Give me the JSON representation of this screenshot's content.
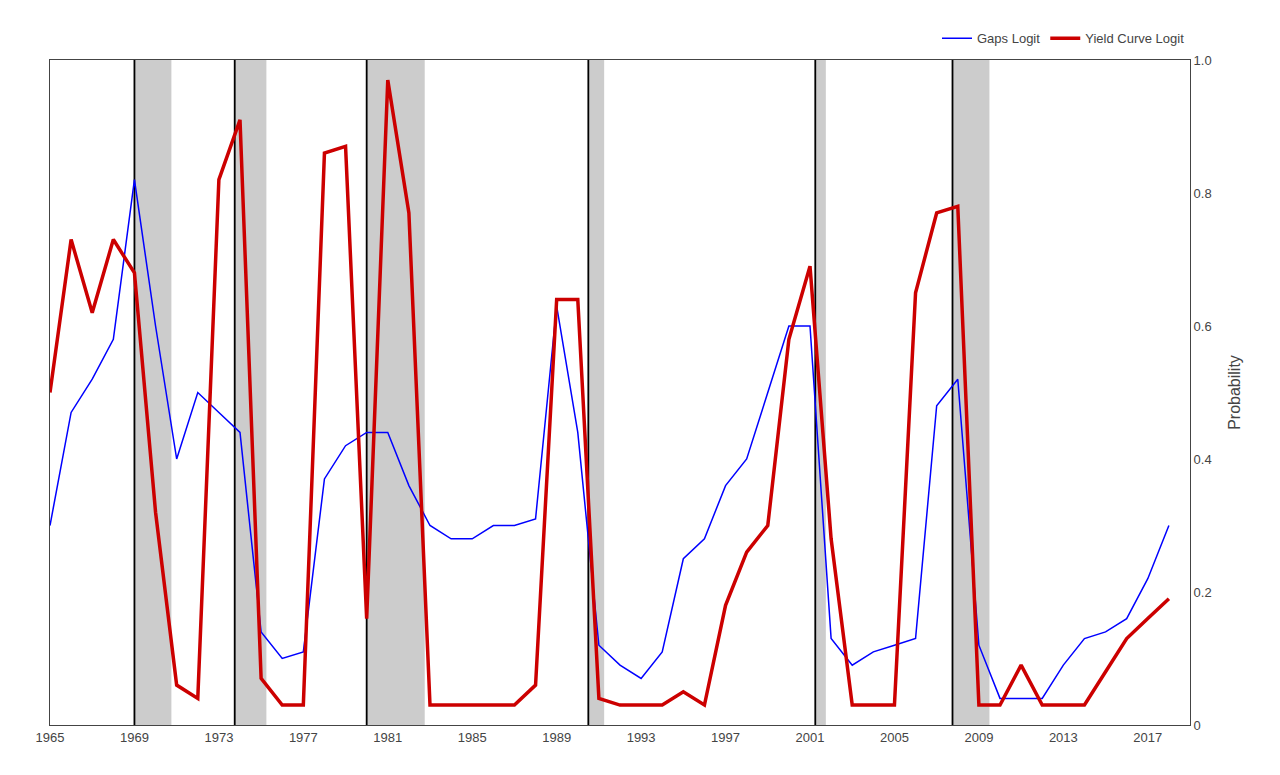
{
  "chart_data": {
    "type": "line",
    "ylabel": "Probability",
    "x": [
      1965,
      1966,
      1967,
      1968,
      1969,
      1970,
      1971,
      1972,
      1973,
      1974,
      1975,
      1976,
      1977,
      1978,
      1979,
      1980,
      1981,
      1982,
      1983,
      1984,
      1985,
      1986,
      1987,
      1988,
      1989,
      1990,
      1991,
      1992,
      1993,
      1994,
      1995,
      1996,
      1997,
      1998,
      1999,
      2000,
      2001,
      2002,
      2003,
      2004,
      2005,
      2006,
      2007,
      2008,
      2009,
      2010,
      2011,
      2012,
      2013,
      2014,
      2015,
      2016,
      2017,
      2018
    ],
    "series": [
      {
        "name": "Gaps Logit",
        "color": "#0000FF",
        "values": [
          0.3,
          0.47,
          0.52,
          0.58,
          0.82,
          0.6,
          0.4,
          0.5,
          0.47,
          0.44,
          0.14,
          0.1,
          0.11,
          0.37,
          0.42,
          0.44,
          0.44,
          0.36,
          0.3,
          0.28,
          0.28,
          0.3,
          0.3,
          0.31,
          0.63,
          0.44,
          0.12,
          0.09,
          0.07,
          0.11,
          0.25,
          0.28,
          0.36,
          0.4,
          0.5,
          0.6,
          0.6,
          0.13,
          0.09,
          0.11,
          0.12,
          0.13,
          0.48,
          0.52,
          0.12,
          0.04,
          0.04,
          0.04,
          0.09,
          0.13,
          0.14,
          0.16,
          0.22,
          0.3
        ]
      },
      {
        "name": "Yield Curve Logit",
        "color": "#CC0000",
        "values": [
          0.5,
          0.73,
          0.62,
          0.73,
          0.68,
          0.32,
          0.06,
          0.04,
          0.82,
          0.91,
          0.07,
          0.03,
          0.03,
          0.86,
          0.87,
          0.16,
          0.97,
          0.77,
          0.03,
          0.03,
          0.03,
          0.03,
          0.03,
          0.06,
          0.64,
          0.64,
          0.04,
          0.03,
          0.03,
          0.03,
          0.05,
          0.03,
          0.18,
          0.26,
          0.3,
          0.58,
          0.69,
          0.28,
          0.03,
          0.03,
          0.03,
          0.65,
          0.77,
          0.78,
          0.03,
          0.03,
          0.09,
          0.03,
          0.03,
          0.03,
          0.08,
          0.13,
          0.16,
          0.19
        ]
      }
    ],
    "recession_shades": [
      [
        1969.0,
        1970.75
      ],
      [
        1973.75,
        1975.25
      ],
      [
        1980.0,
        1982.75
      ],
      [
        1990.5,
        1991.25
      ],
      [
        2001.25,
        2001.75
      ],
      [
        2007.75,
        2009.5
      ]
    ],
    "recession_lines": [
      1969.0,
      1973.75,
      1980.0,
      1990.5,
      2001.25,
      2007.75
    ],
    "xlim": [
      1965,
      2019
    ],
    "xticks": [
      1965,
      1969,
      1973,
      1977,
      1981,
      1985,
      1989,
      1993,
      1997,
      2001,
      2005,
      2009,
      2013,
      2017
    ],
    "ylim": [
      0,
      1.0
    ],
    "yticks": [
      0,
      0.2,
      0.4,
      0.6,
      0.8,
      {
        "value": 1.0,
        "label": "1.0"
      }
    ],
    "grid": false,
    "legend": "upper right"
  }
}
